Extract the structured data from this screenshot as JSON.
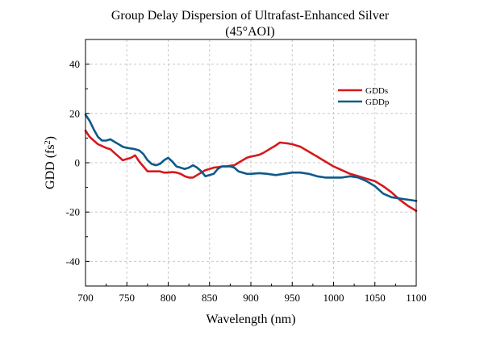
{
  "chart_data": {
    "type": "line",
    "title_line1": "Group Delay Dispersion of Ultrafast-Enhanced Silver",
    "title_line2": "(45°AOI)",
    "xlabel": "Wavelength (nm)",
    "ylabel_main": "GDD (fs",
    "ylabel_sup": "2",
    "ylabel_close": ")",
    "xlim": [
      700,
      1100
    ],
    "ylim": [
      -50,
      50
    ],
    "xticks": [
      700,
      750,
      800,
      850,
      900,
      950,
      1000,
      1050,
      1100
    ],
    "yticks": [
      -40,
      -20,
      0,
      20,
      40
    ],
    "grid": true,
    "legend_position": "upper-right",
    "series": [
      {
        "name": "GDDs",
        "color": "#d7191c",
        "x": [
          700,
          705,
          715,
          725,
          730,
          735,
          740,
          745,
          750,
          755,
          760,
          765,
          770,
          775,
          780,
          785,
          790,
          795,
          800,
          805,
          810,
          815,
          820,
          825,
          830,
          835,
          840,
          845,
          850,
          855,
          860,
          865,
          870,
          875,
          880,
          885,
          890,
          895,
          900,
          905,
          910,
          915,
          920,
          925,
          930,
          935,
          940,
          945,
          950,
          955,
          960,
          965,
          970,
          980,
          990,
          1000,
          1010,
          1020,
          1030,
          1040,
          1050,
          1060,
          1070,
          1080,
          1090,
          1100
        ],
        "y": [
          13,
          10.5,
          7.5,
          6,
          5.5,
          4,
          2.5,
          1,
          1.5,
          2,
          3,
          0.5,
          -1.5,
          -3.5,
          -3.5,
          -3.5,
          -3.5,
          -4,
          -4,
          -3.8,
          -4,
          -4.5,
          -5.5,
          -6,
          -6,
          -5,
          -4,
          -3,
          -2.5,
          -2,
          -1.8,
          -1.5,
          -1.5,
          -1.2,
          -1,
          0,
          1,
          2,
          2.5,
          2.8,
          3.2,
          4,
          5,
          6,
          7,
          8.2,
          8,
          7.8,
          7.5,
          7,
          6.5,
          5.5,
          4.5,
          2.5,
          0.5,
          -1.5,
          -3,
          -4.5,
          -5.5,
          -6.5,
          -7.5,
          -9.5,
          -12,
          -15,
          -17.5,
          -19.5
        ]
      },
      {
        "name": "GDDp",
        "color": "#0e5a8a",
        "x": [
          700,
          705,
          710,
          715,
          720,
          725,
          730,
          735,
          740,
          745,
          750,
          755,
          760,
          765,
          770,
          775,
          780,
          785,
          790,
          795,
          800,
          805,
          810,
          815,
          820,
          825,
          830,
          835,
          840,
          845,
          850,
          855,
          860,
          865,
          870,
          875,
          880,
          885,
          890,
          895,
          900,
          910,
          920,
          930,
          940,
          950,
          960,
          970,
          980,
          990,
          1000,
          1010,
          1020,
          1030,
          1040,
          1050,
          1060,
          1070,
          1080,
          1090,
          1100
        ],
        "y": [
          19.5,
          17,
          13.5,
          10.5,
          9,
          9,
          9.5,
          8.5,
          7.5,
          6.5,
          6,
          5.8,
          5.5,
          5,
          3.5,
          1,
          -0.5,
          -1,
          -0.5,
          1,
          2,
          0.5,
          -1.5,
          -2,
          -2.5,
          -2,
          -1,
          -2,
          -3.5,
          -5.5,
          -5,
          -4.5,
          -2.5,
          -1.5,
          -1.5,
          -1.5,
          -2,
          -3.5,
          -4,
          -4.5,
          -4.5,
          -4.2,
          -4.5,
          -5,
          -4.5,
          -4,
          -4,
          -4.5,
          -5.5,
          -6,
          -6,
          -6,
          -5.5,
          -6,
          -7.5,
          -9.5,
          -12.5,
          -14,
          -14.5,
          -15,
          -15.5
        ]
      }
    ]
  }
}
